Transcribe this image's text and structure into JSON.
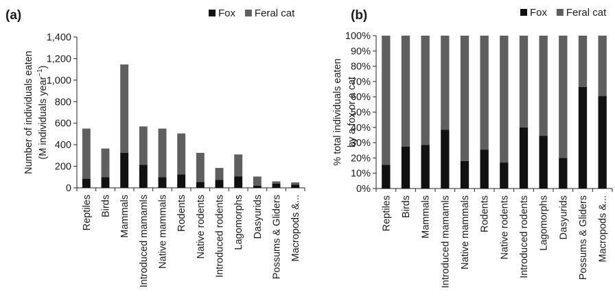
{
  "colors": {
    "fox": "#111111",
    "feral_cat": "#5f5f5f",
    "axis": "#222222"
  },
  "chart_data": [
    {
      "type": "bar",
      "stacked": true,
      "panel_label": "(a)",
      "ylabel_line1": "Number of individuals eaten",
      "ylabel_line2_main": "(M individuals year",
      "ylabel_line2_sup": "−1",
      "ylabel_line2_end": ")",
      "ylim": [
        0,
        1400
      ],
      "yticks": [
        0,
        200,
        400,
        600,
        800,
        1000,
        1200,
        1400
      ],
      "ytick_labels": [
        "0",
        "200",
        "400",
        "600",
        "800",
        "1,000",
        "1,200",
        "1,400"
      ],
      "legend": {
        "position": "top-right",
        "entries": [
          "Fox",
          "Feral cat"
        ]
      },
      "categories": [
        "Reptiles",
        "Birds",
        "Mammals",
        "Introduced mamamls",
        "Native mammals",
        "Rodents",
        "Native rodents",
        "Introduced rodents",
        "Lagomorphs",
        "Dasyurids",
        "Possums & Gliders",
        "Macropods &..."
      ],
      "series": [
        {
          "name": "Fox",
          "values": [
            85,
            100,
            325,
            215,
            100,
            125,
            55,
            75,
            105,
            20,
            40,
            30
          ]
        },
        {
          "name": "Feral cat",
          "values": [
            465,
            265,
            820,
            355,
            450,
            380,
            270,
            110,
            205,
            85,
            20,
            20
          ]
        }
      ],
      "grid": false
    },
    {
      "type": "bar",
      "stacked": true,
      "panel_label": "(b)",
      "ylabel_line1": "% total individuals eaten",
      "ylabel_line2": "by a fox or a cat",
      "ylim": [
        0,
        100
      ],
      "yticks": [
        0,
        10,
        20,
        30,
        40,
        50,
        60,
        70,
        80,
        90,
        100
      ],
      "ytick_labels": [
        "0%",
        "10%",
        "20%",
        "30%",
        "40%",
        "50%",
        "60%",
        "70%",
        "80%",
        "90%",
        "100%"
      ],
      "legend": {
        "position": "top-right",
        "entries": [
          "Fox",
          "Feral cat"
        ]
      },
      "categories": [
        "Reptiles",
        "Birds",
        "Mammals",
        "Introduced mamamls",
        "Native mammals",
        "Rodents",
        "Native rodents",
        "Introduced rodents",
        "Lagomorphs",
        "Dasyurids",
        "Possums & Gliders",
        "Macropods &..."
      ],
      "series": [
        {
          "name": "Fox",
          "values": [
            15.5,
            27.5,
            28.5,
            38.5,
            18,
            25.5,
            17,
            40,
            34.5,
            20,
            66.5,
            60.5
          ]
        },
        {
          "name": "Feral cat",
          "values": [
            84.5,
            72.5,
            71.5,
            61.5,
            82,
            74.5,
            83,
            60,
            65.5,
            80,
            33.5,
            39.5
          ]
        }
      ],
      "grid": false
    }
  ]
}
